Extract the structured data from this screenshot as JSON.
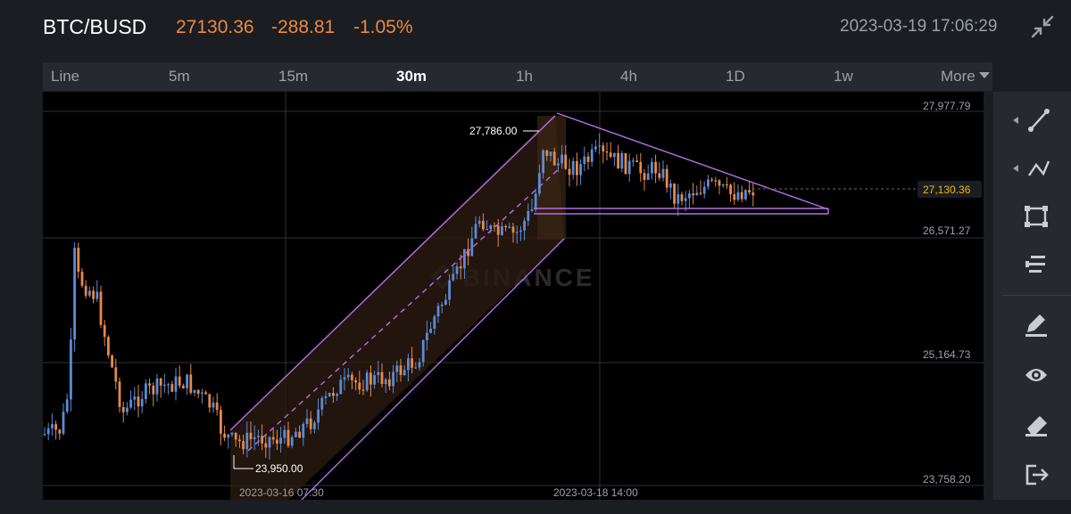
{
  "header": {
    "pair": "BTC/BUSD",
    "last_price": "27130.36",
    "change": "-288.81",
    "change_pct": "-1.05%",
    "datetime": "2023-03-19 17:06:29",
    "collapse_icon": "collapse-arrows-icon"
  },
  "tabs": [
    {
      "label": "Line",
      "active": false
    },
    {
      "label": "5m",
      "active": false
    },
    {
      "label": "15m",
      "active": false
    },
    {
      "label": "30m",
      "active": true
    },
    {
      "label": "1h",
      "active": false
    },
    {
      "label": "4h",
      "active": false
    },
    {
      "label": "1D",
      "active": false
    },
    {
      "label": "1w",
      "active": false
    }
  ],
  "more_label": "More",
  "colors": {
    "up": "#5b8bd6",
    "down": "#e5894a",
    "drawing": "#b66ee8",
    "current_price": "#f0b90b",
    "header_price": "#f0883d"
  },
  "chart": {
    "y_ticks": [
      "27,977.79",
      "26,571.27",
      "25,164.73",
      "23,758.20"
    ],
    "x_ticks": [
      "2023-03-16 07:30",
      "2023-03-18 14:00"
    ],
    "current_price_label": "27,130.36",
    "high_label": "27,786.00",
    "low_label": "23,950.00",
    "watermark": "BINANCE"
  },
  "chart_data": {
    "type": "candlestick",
    "y_range": [
      23758.2,
      27977.79
    ],
    "y_ticks": [
      27977.79,
      26571.27,
      25164.73,
      23758.2
    ],
    "x_ticks": [
      "2023-03-16 07:30",
      "2023-03-18 14:00"
    ],
    "current_price": 27130.36,
    "annotations": {
      "high": 27786.0,
      "low": 23950.0
    },
    "grid": true
  },
  "tools": [
    {
      "name": "trend-line-icon",
      "has_arrow": true
    },
    {
      "name": "multi-point-line-icon",
      "has_arrow": true
    },
    {
      "name": "rectangle-tool-icon",
      "has_arrow": false
    },
    {
      "name": "fibonacci-tool-icon",
      "has_arrow": false
    },
    {
      "name": "edit-pencil-icon",
      "has_arrow": false
    },
    {
      "name": "eye-icon",
      "has_arrow": false
    },
    {
      "name": "eraser-icon",
      "has_arrow": false
    },
    {
      "name": "exit-icon",
      "has_arrow": false
    }
  ]
}
